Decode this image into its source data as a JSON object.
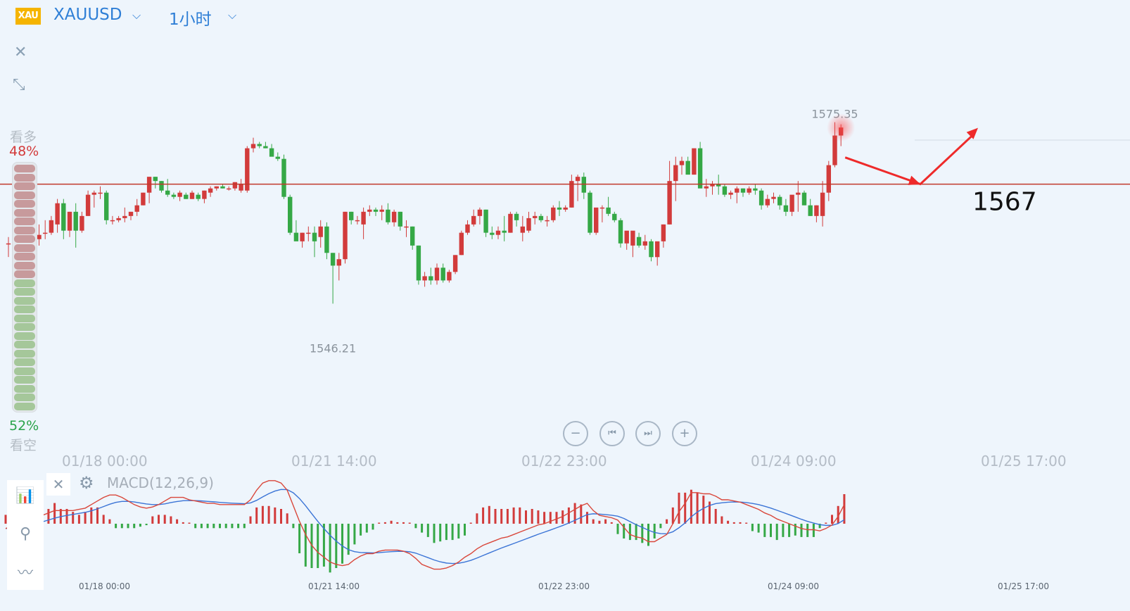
{
  "header": {
    "logo_text": "XAU",
    "symbol": "XAUUSD",
    "interval": "1小时",
    "chevron": "⌵",
    "icons": [
      "chevron-down-icon",
      "close-icon",
      "collapse-icon",
      "gear-icon",
      "indicator-icon",
      "drawing-compass-icon",
      "waveform-icon"
    ]
  },
  "toolbar": {
    "close_glyph": "✕",
    "collapse_glyph": "⤡"
  },
  "sentiment": {
    "bull_label": "看多",
    "bull_pct": "48%",
    "bear_label": "看空",
    "bear_pct": "52%",
    "bull_fraction": 0.48,
    "colors": {
      "bull": "#c79a9c",
      "bear": "#a5c79a"
    }
  },
  "navigation": {
    "zoom_out": "−",
    "prev": "⏮",
    "next": "⏭",
    "zoom_in": "+"
  },
  "macd": {
    "title": "MACD(12,26,9)",
    "close_glyph": "✕",
    "gear_glyph": "⚙"
  },
  "chart_data": {
    "type": "candlestick",
    "symbol": "XAUUSD",
    "interval": "1小时",
    "x_tick_labels": [
      "01/18 00:00",
      "01/21 14:00",
      "01/22 23:00",
      "01/24 09:00",
      "01/25 17:00"
    ],
    "ylim": [
      1541.5,
      1579.5
    ],
    "annotations": {
      "high_label": "1575.35",
      "high_value": 1575.35,
      "low_label": "1546.21",
      "low_value": 1546.21,
      "level_label": "1567",
      "level_value": 1567,
      "arrow_path_values": [
        1570.6,
        1567.0,
        1574.6
      ]
    },
    "colors": {
      "up": "#d23b3b",
      "down": "#35a846",
      "level": "#c0392b",
      "arrow": "#ee2a2a",
      "dif": "#d9473b",
      "dea": "#3b74d6"
    },
    "candles_ohlc": [
      [
        1559.0,
        1559.86,
        1557.16,
        1559.0
      ],
      [
        1558.71,
        1559.86,
        1558.14,
        1559.86
      ],
      [
        1559.86,
        1562.13,
        1559.57,
        1561.56
      ],
      [
        1561.56,
        1562.13,
        1559.86,
        1560.44
      ],
      [
        1560.44,
        1561.56,
        1558.71,
        1559.0
      ],
      [
        1559.57,
        1561.56,
        1558.71,
        1560.15
      ],
      [
        1560.44,
        1562.13,
        1559.57,
        1560.44
      ],
      [
        1560.44,
        1562.7,
        1560.15,
        1562.13
      ],
      [
        1561.56,
        1565.0,
        1560.44,
        1564.42
      ],
      [
        1564.42,
        1565.0,
        1559.57,
        1560.72
      ],
      [
        1560.72,
        1563.27,
        1559.86,
        1563.27
      ],
      [
        1563.27,
        1564.42,
        1558.43,
        1560.72
      ],
      [
        1560.72,
        1563.27,
        1560.44,
        1562.7
      ],
      [
        1562.7,
        1566.13,
        1562.7,
        1565.57
      ],
      [
        1565.57,
        1566.13,
        1563.84,
        1565.85
      ],
      [
        1565.85,
        1566.7,
        1564.99,
        1565.85
      ],
      [
        1565.85,
        1566.13,
        1561.56,
        1562.13
      ],
      [
        1562.13,
        1562.7,
        1561.56,
        1562.13
      ],
      [
        1562.13,
        1562.7,
        1561.85,
        1562.41
      ],
      [
        1562.41,
        1563.84,
        1561.85,
        1562.7
      ],
      [
        1562.7,
        1563.27,
        1562.13,
        1563.27
      ],
      [
        1563.27,
        1564.99,
        1562.7,
        1564.14
      ],
      [
        1564.14,
        1565.85,
        1564.14,
        1565.85
      ],
      [
        1565.85,
        1567.99,
        1564.42,
        1567.99
      ],
      [
        1567.99,
        1567.99,
        1566.42,
        1567.42
      ],
      [
        1567.42,
        1567.42,
        1565.85,
        1566.13
      ],
      [
        1566.13,
        1567.7,
        1565.28,
        1565.57
      ],
      [
        1565.57,
        1565.85,
        1564.99,
        1565.28
      ],
      [
        1565.28,
        1566.13,
        1564.71,
        1565.85
      ],
      [
        1565.57,
        1565.85,
        1564.99,
        1564.99
      ],
      [
        1564.99,
        1566.13,
        1564.99,
        1565.85
      ],
      [
        1565.57,
        1565.85,
        1564.71,
        1565.0
      ],
      [
        1565.0,
        1566.13,
        1564.42,
        1566.13
      ],
      [
        1565.85,
        1566.7,
        1565.28,
        1566.42
      ],
      [
        1566.42,
        1566.7,
        1566.13,
        1566.7
      ],
      [
        1566.7,
        1566.99,
        1566.42,
        1566.42
      ],
      [
        1566.42,
        1566.7,
        1566.13,
        1566.42
      ],
      [
        1566.42,
        1567.27,
        1566.13,
        1567.27
      ],
      [
        1566.13,
        1567.7,
        1565.85,
        1566.99
      ],
      [
        1566.13,
        1572.13,
        1565.85,
        1571.84
      ],
      [
        1571.84,
        1573.27,
        1571.28,
        1572.42
      ],
      [
        1572.42,
        1572.7,
        1571.84,
        1572.13
      ],
      [
        1572.13,
        1572.7,
        1571.84,
        1571.84
      ],
      [
        1571.84,
        1572.42,
        1570.99,
        1570.7
      ],
      [
        1570.7,
        1571.28,
        1570.13,
        1570.41
      ],
      [
        1570.41,
        1570.99,
        1564.99,
        1565.28
      ],
      [
        1565.28,
        1565.57,
        1560.15,
        1560.44
      ],
      [
        1560.44,
        1562.13,
        1559.57,
        1559.28
      ],
      [
        1559.28,
        1560.44,
        1558.43,
        1560.44
      ],
      [
        1560.44,
        1561.28,
        1559.28,
        1560.44
      ],
      [
        1560.44,
        1561.28,
        1557.15,
        1559.28
      ],
      [
        1559.86,
        1562.13,
        1558.43,
        1561.28
      ],
      [
        1561.28,
        1561.84,
        1556.87,
        1557.72
      ],
      [
        1557.72,
        1557.72,
        1550.87,
        1556.0
      ],
      [
        1556.0,
        1557.72,
        1554.0,
        1556.87
      ],
      [
        1556.87,
        1563.27,
        1556.28,
        1563.27
      ],
      [
        1563.27,
        1563.27,
        1561.56,
        1562.13
      ],
      [
        1562.13,
        1562.7,
        1561.56,
        1562.13
      ],
      [
        1561.56,
        1563.84,
        1559.57,
        1563.27
      ],
      [
        1563.27,
        1564.14,
        1562.7,
        1563.56
      ],
      [
        1563.56,
        1563.84,
        1562.7,
        1563.27
      ],
      [
        1563.27,
        1564.14,
        1562.13,
        1563.56
      ],
      [
        1563.56,
        1564.42,
        1561.56,
        1561.85
      ],
      [
        1561.85,
        1563.56,
        1561.28,
        1563.27
      ],
      [
        1563.27,
        1563.27,
        1560.72,
        1561.28
      ],
      [
        1561.28,
        1562.13,
        1559.86,
        1561.28
      ],
      [
        1561.28,
        1561.28,
        1558.14,
        1558.71
      ],
      [
        1558.71,
        1558.71,
        1553.43,
        1554.0
      ],
      [
        1554.0,
        1555.15,
        1553.15,
        1554.57
      ],
      [
        1554.57,
        1555.72,
        1553.43,
        1554.0
      ],
      [
        1554.0,
        1556.28,
        1553.43,
        1555.72
      ],
      [
        1555.72,
        1556.28,
        1553.71,
        1554.0
      ],
      [
        1554.0,
        1555.44,
        1553.71,
        1555.15
      ],
      [
        1555.15,
        1557.43,
        1554.86,
        1557.43
      ],
      [
        1557.43,
        1560.72,
        1557.43,
        1560.44
      ],
      [
        1560.44,
        1562.13,
        1560.15,
        1561.56
      ],
      [
        1561.56,
        1563.56,
        1561.28,
        1562.7
      ],
      [
        1562.7,
        1563.84,
        1561.56,
        1563.56
      ],
      [
        1563.56,
        1563.56,
        1559.86,
        1560.44
      ],
      [
        1560.44,
        1561.28,
        1559.57,
        1560.15
      ],
      [
        1560.15,
        1561.28,
        1559.57,
        1560.72
      ],
      [
        1560.72,
        1562.7,
        1559.28,
        1560.44
      ],
      [
        1560.44,
        1563.27,
        1560.44,
        1562.99
      ],
      [
        1562.99,
        1563.27,
        1561.28,
        1562.13
      ],
      [
        1560.44,
        1562.7,
        1559.28,
        1561.28
      ],
      [
        1560.72,
        1563.27,
        1560.44,
        1562.41
      ],
      [
        1562.41,
        1563.27,
        1561.56,
        1562.7
      ],
      [
        1562.7,
        1562.99,
        1561.85,
        1562.13
      ],
      [
        1562.13,
        1562.7,
        1561.28,
        1562.13
      ],
      [
        1562.13,
        1564.14,
        1561.85,
        1563.84
      ],
      [
        1563.84,
        1564.71,
        1562.7,
        1563.56
      ],
      [
        1563.56,
        1564.14,
        1563.27,
        1563.84
      ],
      [
        1563.84,
        1568.28,
        1563.84,
        1567.42
      ],
      [
        1567.42,
        1568.28,
        1564.71,
        1567.99
      ],
      [
        1567.99,
        1568.56,
        1564.99,
        1565.85
      ],
      [
        1565.85,
        1566.13,
        1560.15,
        1560.44
      ],
      [
        1560.44,
        1563.56,
        1560.15,
        1563.84
      ],
      [
        1563.84,
        1564.14,
        1561.84,
        1563.84
      ],
      [
        1563.84,
        1565.28,
        1562.7,
        1562.99
      ],
      [
        1562.99,
        1563.27,
        1561.85,
        1562.13
      ],
      [
        1562.13,
        1562.41,
        1558.43,
        1559.0
      ],
      [
        1559.0,
        1560.44,
        1558.14,
        1560.72
      ],
      [
        1558.71,
        1560.44,
        1557.15,
        1560.72
      ],
      [
        1559.86,
        1560.44,
        1558.43,
        1558.71
      ],
      [
        1558.71,
        1560.15,
        1558.14,
        1559.28
      ],
      [
        1559.28,
        1559.57,
        1556.58,
        1557.15
      ],
      [
        1557.15,
        1558.43,
        1556.0,
        1559.28
      ],
      [
        1559.28,
        1561.56,
        1558.43,
        1561.56
      ],
      [
        1561.56,
        1570.13,
        1561.56,
        1567.42
      ],
      [
        1567.42,
        1570.7,
        1564.71,
        1569.56
      ],
      [
        1569.56,
        1570.7,
        1568.28,
        1570.13
      ],
      [
        1570.13,
        1570.7,
        1568.56,
        1568.28
      ],
      [
        1568.28,
        1571.56,
        1568.28,
        1571.84
      ],
      [
        1571.84,
        1572.7,
        1566.99,
        1566.42
      ],
      [
        1566.42,
        1567.7,
        1565.28,
        1566.7
      ],
      [
        1566.7,
        1567.42,
        1565.57,
        1566.99
      ],
      [
        1566.99,
        1568.28,
        1565.57,
        1566.7
      ],
      [
        1566.7,
        1566.99,
        1565.28,
        1565.57
      ],
      [
        1565.57,
        1566.13,
        1564.99,
        1565.85
      ],
      [
        1565.85,
        1566.7,
        1564.42,
        1566.42
      ],
      [
        1566.42,
        1566.42,
        1565.28,
        1565.85
      ],
      [
        1565.85,
        1566.7,
        1565.57,
        1566.42
      ],
      [
        1566.42,
        1566.99,
        1565.57,
        1566.13
      ],
      [
        1566.13,
        1566.42,
        1563.56,
        1564.14
      ],
      [
        1564.14,
        1565.57,
        1563.84,
        1565.0
      ],
      [
        1565.0,
        1565.85,
        1564.42,
        1565.28
      ],
      [
        1565.28,
        1565.57,
        1563.56,
        1564.14
      ],
      [
        1564.14,
        1564.99,
        1562.7,
        1563.27
      ],
      [
        1563.27,
        1565.0,
        1562.7,
        1565.57
      ],
      [
        1565.57,
        1567.42,
        1563.27,
        1565.85
      ],
      [
        1565.85,
        1566.13,
        1564.14,
        1564.14
      ],
      [
        1564.14,
        1565.0,
        1562.7,
        1562.7
      ],
      [
        1562.7,
        1564.14,
        1561.85,
        1564.14
      ],
      [
        1562.7,
        1567.42,
        1561.28,
        1565.85
      ],
      [
        1565.85,
        1570.13,
        1564.71,
        1569.56
      ],
      [
        1569.56,
        1575.35,
        1569.27,
        1573.56
      ],
      [
        1573.56,
        1575.07,
        1572.13,
        1574.64
      ]
    ],
    "macd_histogram": [
      0.6,
      1.0,
      1.3,
      1.2,
      0.6,
      1.1,
      1.0,
      1.0,
      1.4,
      1.0,
      1.0,
      0.8,
      0.6,
      0.8,
      1.1,
      1.1,
      0.6,
      0.3,
      -0.3,
      -0.3,
      -0.3,
      -0.3,
      -0.2,
      -0.1,
      0.5,
      0.6,
      0.6,
      0.5,
      0.3,
      0.1,
      0.0,
      -0.3,
      -0.3,
      -0.3,
      -0.3,
      -0.3,
      -0.3,
      -0.3,
      -0.3,
      -0.3,
      0.5,
      1.1,
      1.2,
      1.2,
      1.1,
      1.0,
      0.7,
      -0.3,
      -2.0,
      -2.9,
      -3.0,
      -3.0,
      -2.9,
      -3.3,
      -3.0,
      -2.7,
      -2.1,
      -1.4,
      -0.8,
      -0.6,
      -0.4,
      0.0,
      0.1,
      0.2,
      0.1,
      0.1,
      0.0,
      -0.3,
      -0.6,
      -0.9,
      -1.3,
      -1.2,
      -1.1,
      -1.1,
      -1.0,
      -0.8,
      0.0,
      0.7,
      1.1,
      1.2,
      1.0,
      1.0,
      1.0,
      1.1,
      1.1,
      0.9,
      1.0,
      0.9,
      0.8,
      0.8,
      0.8,
      0.9,
      1.1,
      1.4,
      1.3,
      0.8,
      0.3,
      0.2,
      0.3,
      0.1,
      -0.7,
      -1.0,
      -1.1,
      -1.1,
      -1.3,
      -1.5,
      -1.0,
      -0.3,
      0.3,
      1.1,
      2.1,
      2.1,
      2.3,
      2.1,
      1.9,
      1.5,
      1.0,
      0.5,
      0.2,
      0.1,
      0.1,
      0.0,
      -0.5,
      -0.6,
      -0.9,
      -0.9,
      -1.1,
      -0.9,
      -0.9,
      -0.8,
      -0.9,
      -0.9,
      -0.9,
      -0.3,
      0.0,
      0.6,
      1.2,
      2.0
    ],
    "macd_dif": [
      -0.4,
      -0.2,
      0.0,
      0.2,
      0.3,
      0.5,
      0.7,
      0.9,
      1.1,
      1.1,
      1.1,
      1.1,
      1.2,
      1.3,
      1.6,
      1.9,
      2.2,
      2.4,
      2.4,
      2.2,
      1.9,
      1.6,
      1.4,
      1.3,
      1.4,
      1.6,
      1.9,
      2.2,
      2.2,
      2.2,
      2.0,
      1.9,
      1.8,
      1.7,
      1.7,
      1.6,
      1.6,
      1.6,
      1.6,
      1.6,
      2.0,
      2.8,
      3.4,
      3.6,
      3.6,
      3.4,
      2.8,
      1.5,
      0.2,
      -0.9,
      -1.8,
      -2.4,
      -2.8,
      -3.2,
      -3.4,
      -3.5,
      -3.4,
      -3.0,
      -2.7,
      -2.5,
      -2.5,
      -2.3,
      -2.2,
      -2.2,
      -2.2,
      -2.3,
      -2.5,
      -2.9,
      -3.4,
      -3.6,
      -3.8,
      -3.8,
      -3.7,
      -3.5,
      -3.2,
      -2.8,
      -2.5,
      -2.1,
      -1.8,
      -1.6,
      -1.4,
      -1.2,
      -1.1,
      -0.9,
      -0.7,
      -0.5,
      -0.3,
      -0.1,
      0.0,
      0.2,
      0.4,
      0.6,
      0.9,
      1.2,
      1.5,
      1.7,
      1.1,
      0.7,
      0.6,
      0.5,
      0.3,
      -0.3,
      -0.9,
      -1.1,
      -1.2,
      -1.5,
      -1.5,
      -1.2,
      -0.9,
      0.0,
      1.0,
      1.7,
      2.6,
      2.6,
      2.5,
      2.5,
      2.3,
      2.0,
      2.0,
      1.9,
      1.8,
      1.6,
      1.4,
      1.2,
      0.9,
      0.7,
      0.4,
      0.2,
      0.0,
      -0.2,
      -0.4,
      -0.5,
      -0.5,
      -0.6,
      -0.4,
      -0.1,
      0.6,
      1.6
    ]
  }
}
